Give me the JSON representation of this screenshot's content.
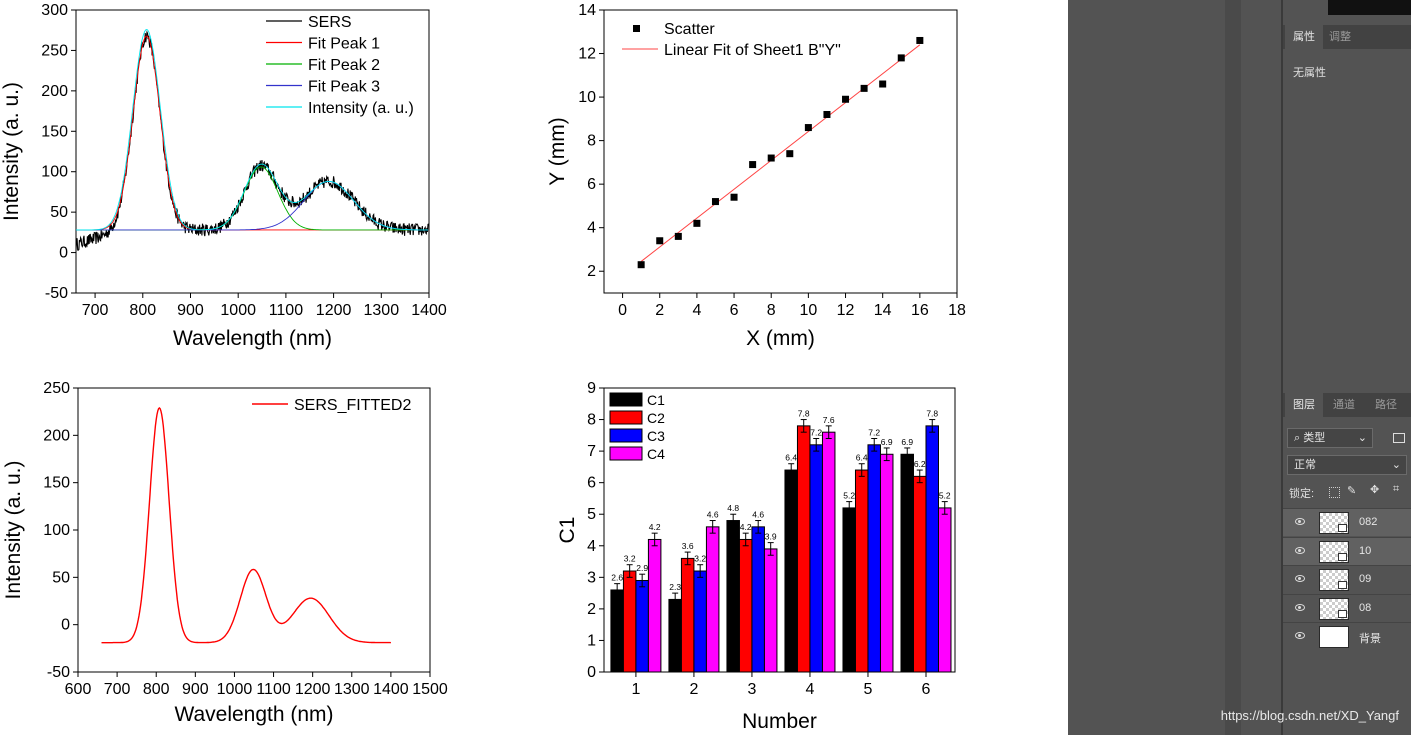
{
  "chart_data": [
    {
      "type": "line",
      "xlabel": "Wavelength (nm)",
      "ylabel": "Intensity (a. u.)",
      "xlim": [
        660,
        1400
      ],
      "ylim": [
        -50,
        300
      ],
      "xticks": [
        "700",
        "800",
        "900",
        "1000",
        "1100",
        "1200",
        "1300",
        "1400"
      ],
      "yticks": [
        "-50",
        "0",
        "50",
        "100",
        "150",
        "200",
        "250",
        "300"
      ],
      "legend_position": "top-right",
      "series": [
        {
          "name": "SERS",
          "color": "#000000",
          "baseline": 28,
          "noise": 8,
          "peaks": [
            [
              808,
              240,
              28
            ],
            [
              1048,
              78,
              35
            ],
            [
              1190,
              60,
              52
            ]
          ]
        },
        {
          "name": "Fit Peak 1",
          "color": "#ff0000",
          "baseline": 28,
          "peaks": [
            [
              808,
              240,
              28
            ]
          ]
        },
        {
          "name": "Fit Peak 2",
          "color": "#00b000",
          "baseline": 28,
          "peaks": [
            [
              1048,
              78,
              35
            ]
          ]
        },
        {
          "name": "Fit Peak 3",
          "color": "#3333cc",
          "baseline": 28,
          "peaks": [
            [
              1190,
              60,
              52
            ]
          ]
        },
        {
          "name": "Intensity (a. u.)",
          "color": "#00e5ee",
          "baseline": 28,
          "peaks": [
            [
              808,
              248,
              29
            ],
            [
              1048,
              80,
              35
            ],
            [
              1190,
              60,
              52
            ]
          ]
        }
      ]
    },
    {
      "type": "scatter",
      "xlabel": "X (mm)",
      "ylabel": "Y (mm)",
      "xlim": [
        -1,
        18
      ],
      "ylim": [
        1,
        14
      ],
      "xticks": [
        "0",
        "2",
        "4",
        "6",
        "8",
        "10",
        "12",
        "14",
        "16",
        "18"
      ],
      "yticks": [
        "2",
        "4",
        "6",
        "8",
        "10",
        "12",
        "14"
      ],
      "legend_position": "top-left",
      "series": [
        {
          "name": "Scatter",
          "color": "#000000",
          "x": [
            1,
            2,
            3,
            4,
            5,
            6,
            7,
            8,
            9,
            10,
            11,
            12,
            13,
            14,
            15,
            16
          ],
          "y": [
            2.3,
            3.4,
            3.6,
            4.2,
            5.2,
            5.4,
            6.9,
            7.2,
            7.4,
            8.6,
            9.2,
            9.9,
            10.4,
            10.6,
            11.8,
            12.6
          ]
        },
        {
          "name": "Linear Fit of Sheet1 B\"Y\"",
          "color": "#ff4444",
          "x": [
            1,
            16
          ],
          "y": [
            2.45,
            12.4
          ]
        }
      ]
    },
    {
      "type": "line",
      "xlabel": "Wavelength (nm)",
      "ylabel": "Intensity (a. u.)",
      "xlim": [
        600,
        1500
      ],
      "ylim": [
        -50,
        250
      ],
      "xticks": [
        "600",
        "700",
        "800",
        "900",
        "1000",
        "1100",
        "1200",
        "1300",
        "1400",
        "1500"
      ],
      "yticks": [
        "-50",
        "0",
        "50",
        "100",
        "150",
        "200",
        "250"
      ],
      "legend_position": "top-right",
      "series": [
        {
          "name": "SERS_FITTED2",
          "color": "#ff0000",
          "baseline": -19,
          "xrange": [
            660,
            1400
          ],
          "peaks": [
            [
              808,
              248,
              25
            ],
            [
              1048,
              77,
              33
            ],
            [
              1195,
              47,
              47
            ]
          ]
        }
      ]
    },
    {
      "type": "bar",
      "xlabel": "Number",
      "ylabel": "C1",
      "ylim": [
        0,
        9
      ],
      "yticks": [
        "0",
        "1",
        "2",
        "3",
        "4",
        "5",
        "6",
        "7",
        "8",
        "9"
      ],
      "categories": [
        "1",
        "2",
        "3",
        "4",
        "5",
        "6"
      ],
      "legend_position": "top-left",
      "series": [
        {
          "name": "C1",
          "color": "#000000",
          "values": [
            2.6,
            2.3,
            4.8,
            6.4,
            5.2,
            6.9
          ],
          "labels": [
            "2.6",
            "2.3",
            "4.8",
            "6.4",
            "5.2",
            "6.9"
          ]
        },
        {
          "name": "C2",
          "color": "#ff0000",
          "values": [
            3.2,
            3.6,
            4.2,
            7.8,
            6.4,
            6.2
          ],
          "labels": [
            "3.2",
            "3.6",
            "4.2",
            "7.8",
            "6.4",
            "6.2"
          ]
        },
        {
          "name": "C3",
          "color": "#0000ff",
          "values": [
            2.9,
            3.2,
            4.6,
            7.2,
            7.2,
            7.8
          ],
          "labels": [
            "2.9",
            "3.2",
            "4.6",
            "7.2",
            "7.2",
            "7.8"
          ]
        },
        {
          "name": "C4",
          "color": "#ff00ff",
          "values": [
            4.2,
            4.6,
            3.9,
            7.6,
            6.9,
            5.2
          ],
          "labels": [
            "4.2",
            "4.6",
            "3.9",
            "7.6",
            "6.9",
            "5.2"
          ]
        }
      ]
    }
  ],
  "ps": {
    "properties_tabs": [
      "属性",
      "调整"
    ],
    "properties_text": "无属性",
    "layers_tabs": [
      "图层",
      "通道",
      "路径"
    ],
    "filter_kind": "类型",
    "blend_mode": "正常",
    "lock_label": "锁定:",
    "layers": [
      {
        "name": "082",
        "thumb": "checker"
      },
      {
        "name": "10",
        "thumb": "checker"
      },
      {
        "name": "09",
        "thumb": "checker"
      },
      {
        "name": "08",
        "thumb": "checker"
      },
      {
        "name": "背景",
        "thumb": "white"
      }
    ],
    "watermark": "https://blog.csdn.net/XD_Yangf"
  }
}
